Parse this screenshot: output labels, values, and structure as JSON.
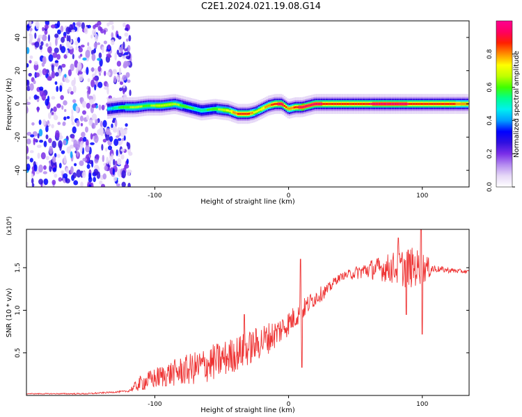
{
  "page": {
    "title": "C2E1.2024.021.19.08.G14"
  },
  "colorbar": {
    "label": "Normalized spectral amplitude",
    "ticks": [
      "0.0",
      "0.2",
      "0.4",
      "0.6",
      "0.8"
    ],
    "colormap": [
      "#ffffff",
      "#e6d8f7",
      "#b58cf0",
      "#7a2ee8",
      "#3010e0",
      "#0000ff",
      "#00a0ff",
      "#00f0f0",
      "#00ff90",
      "#40ff00",
      "#c0ff00",
      "#ffff00",
      "#ff9000",
      "#ff2000",
      "#ff0060",
      "#ff0090"
    ]
  },
  "chart_data": [
    {
      "type": "heatmap",
      "title": "C2E1.2024.021.19.08.G14",
      "xlabel": "Height of straight line (km)",
      "ylabel": "Frequency (Hz)",
      "xlim": [
        -196,
        135
      ],
      "ylim": [
        -50,
        50
      ],
      "xticks": [
        -100,
        0,
        100
      ],
      "yticks": [
        -40,
        -20,
        0,
        20,
        40
      ],
      "color_range": [
        0,
        1
      ],
      "noise_region_x": [
        -196,
        -118
      ],
      "ridge": {
        "x": [
          -135,
          -125,
          -115,
          -105,
          -95,
          -85,
          -75,
          -65,
          -55,
          -45,
          -38,
          -30,
          -25,
          -20,
          -15,
          -10,
          -5,
          0,
          5,
          10,
          20,
          40,
          60,
          80,
          100,
          120,
          135
        ],
        "frequency_hz": [
          -3,
          -2,
          -2,
          -1,
          -1,
          0,
          -2,
          -4,
          -3,
          -4,
          -6,
          -6,
          -5,
          -3,
          -1,
          0,
          0,
          -3,
          -2,
          -2,
          0,
          0,
          0,
          0,
          0,
          0,
          0
        ],
        "peak_amplitude": [
          0.45,
          0.6,
          0.65,
          0.62,
          0.7,
          0.66,
          0.58,
          0.55,
          0.6,
          0.72,
          0.85,
          0.9,
          0.7,
          0.75,
          0.8,
          0.88,
          0.95,
          0.8,
          0.85,
          0.95,
          0.92,
          0.85,
          0.9,
          0.92,
          0.88,
          0.85,
          0.8
        ]
      }
    },
    {
      "type": "line",
      "xlabel": "Height of straight line (km)",
      "ylabel": "SNR (10 * v/v)",
      "scale_label": "(x10⁴)",
      "xlim": [
        -196,
        135
      ],
      "ylim": [
        0,
        1.95
      ],
      "xticks": [
        -100,
        0,
        100
      ],
      "yticks": [
        0.5,
        1.0,
        1.5
      ],
      "ytick_labels": [
        "0.5",
        "1.0",
        "1.5"
      ],
      "color": "#ee3333",
      "trend": {
        "x": [
          -196,
          -150,
          -120,
          -110,
          -90,
          -70,
          -50,
          -30,
          -10,
          0,
          10,
          20,
          30,
          35,
          40,
          60,
          80,
          100,
          120,
          135
        ],
        "y": [
          0.02,
          0.02,
          0.05,
          0.15,
          0.25,
          0.32,
          0.42,
          0.55,
          0.72,
          0.85,
          1.0,
          1.15,
          1.25,
          1.35,
          1.4,
          1.48,
          1.5,
          1.5,
          1.47,
          1.45
        ]
      },
      "noise_amplitude": {
        "x": [
          -196,
          -120,
          -110,
          -60,
          -20,
          20,
          40,
          70,
          90,
          100,
          110,
          135
        ],
        "y": [
          0.005,
          0.01,
          0.1,
          0.22,
          0.2,
          0.1,
          0.04,
          0.15,
          0.25,
          0.2,
          0.04,
          0.02
        ]
      },
      "spikes": [
        {
          "x": -33,
          "y": 0.95
        },
        {
          "x": 9,
          "y": 1.6
        },
        {
          "x": 10,
          "y": 0.33
        },
        {
          "x": 99,
          "y": 1.95
        },
        {
          "x": 100,
          "y": 0.72
        },
        {
          "x": 82,
          "y": 1.85
        },
        {
          "x": 88,
          "y": 0.95
        }
      ]
    }
  ]
}
